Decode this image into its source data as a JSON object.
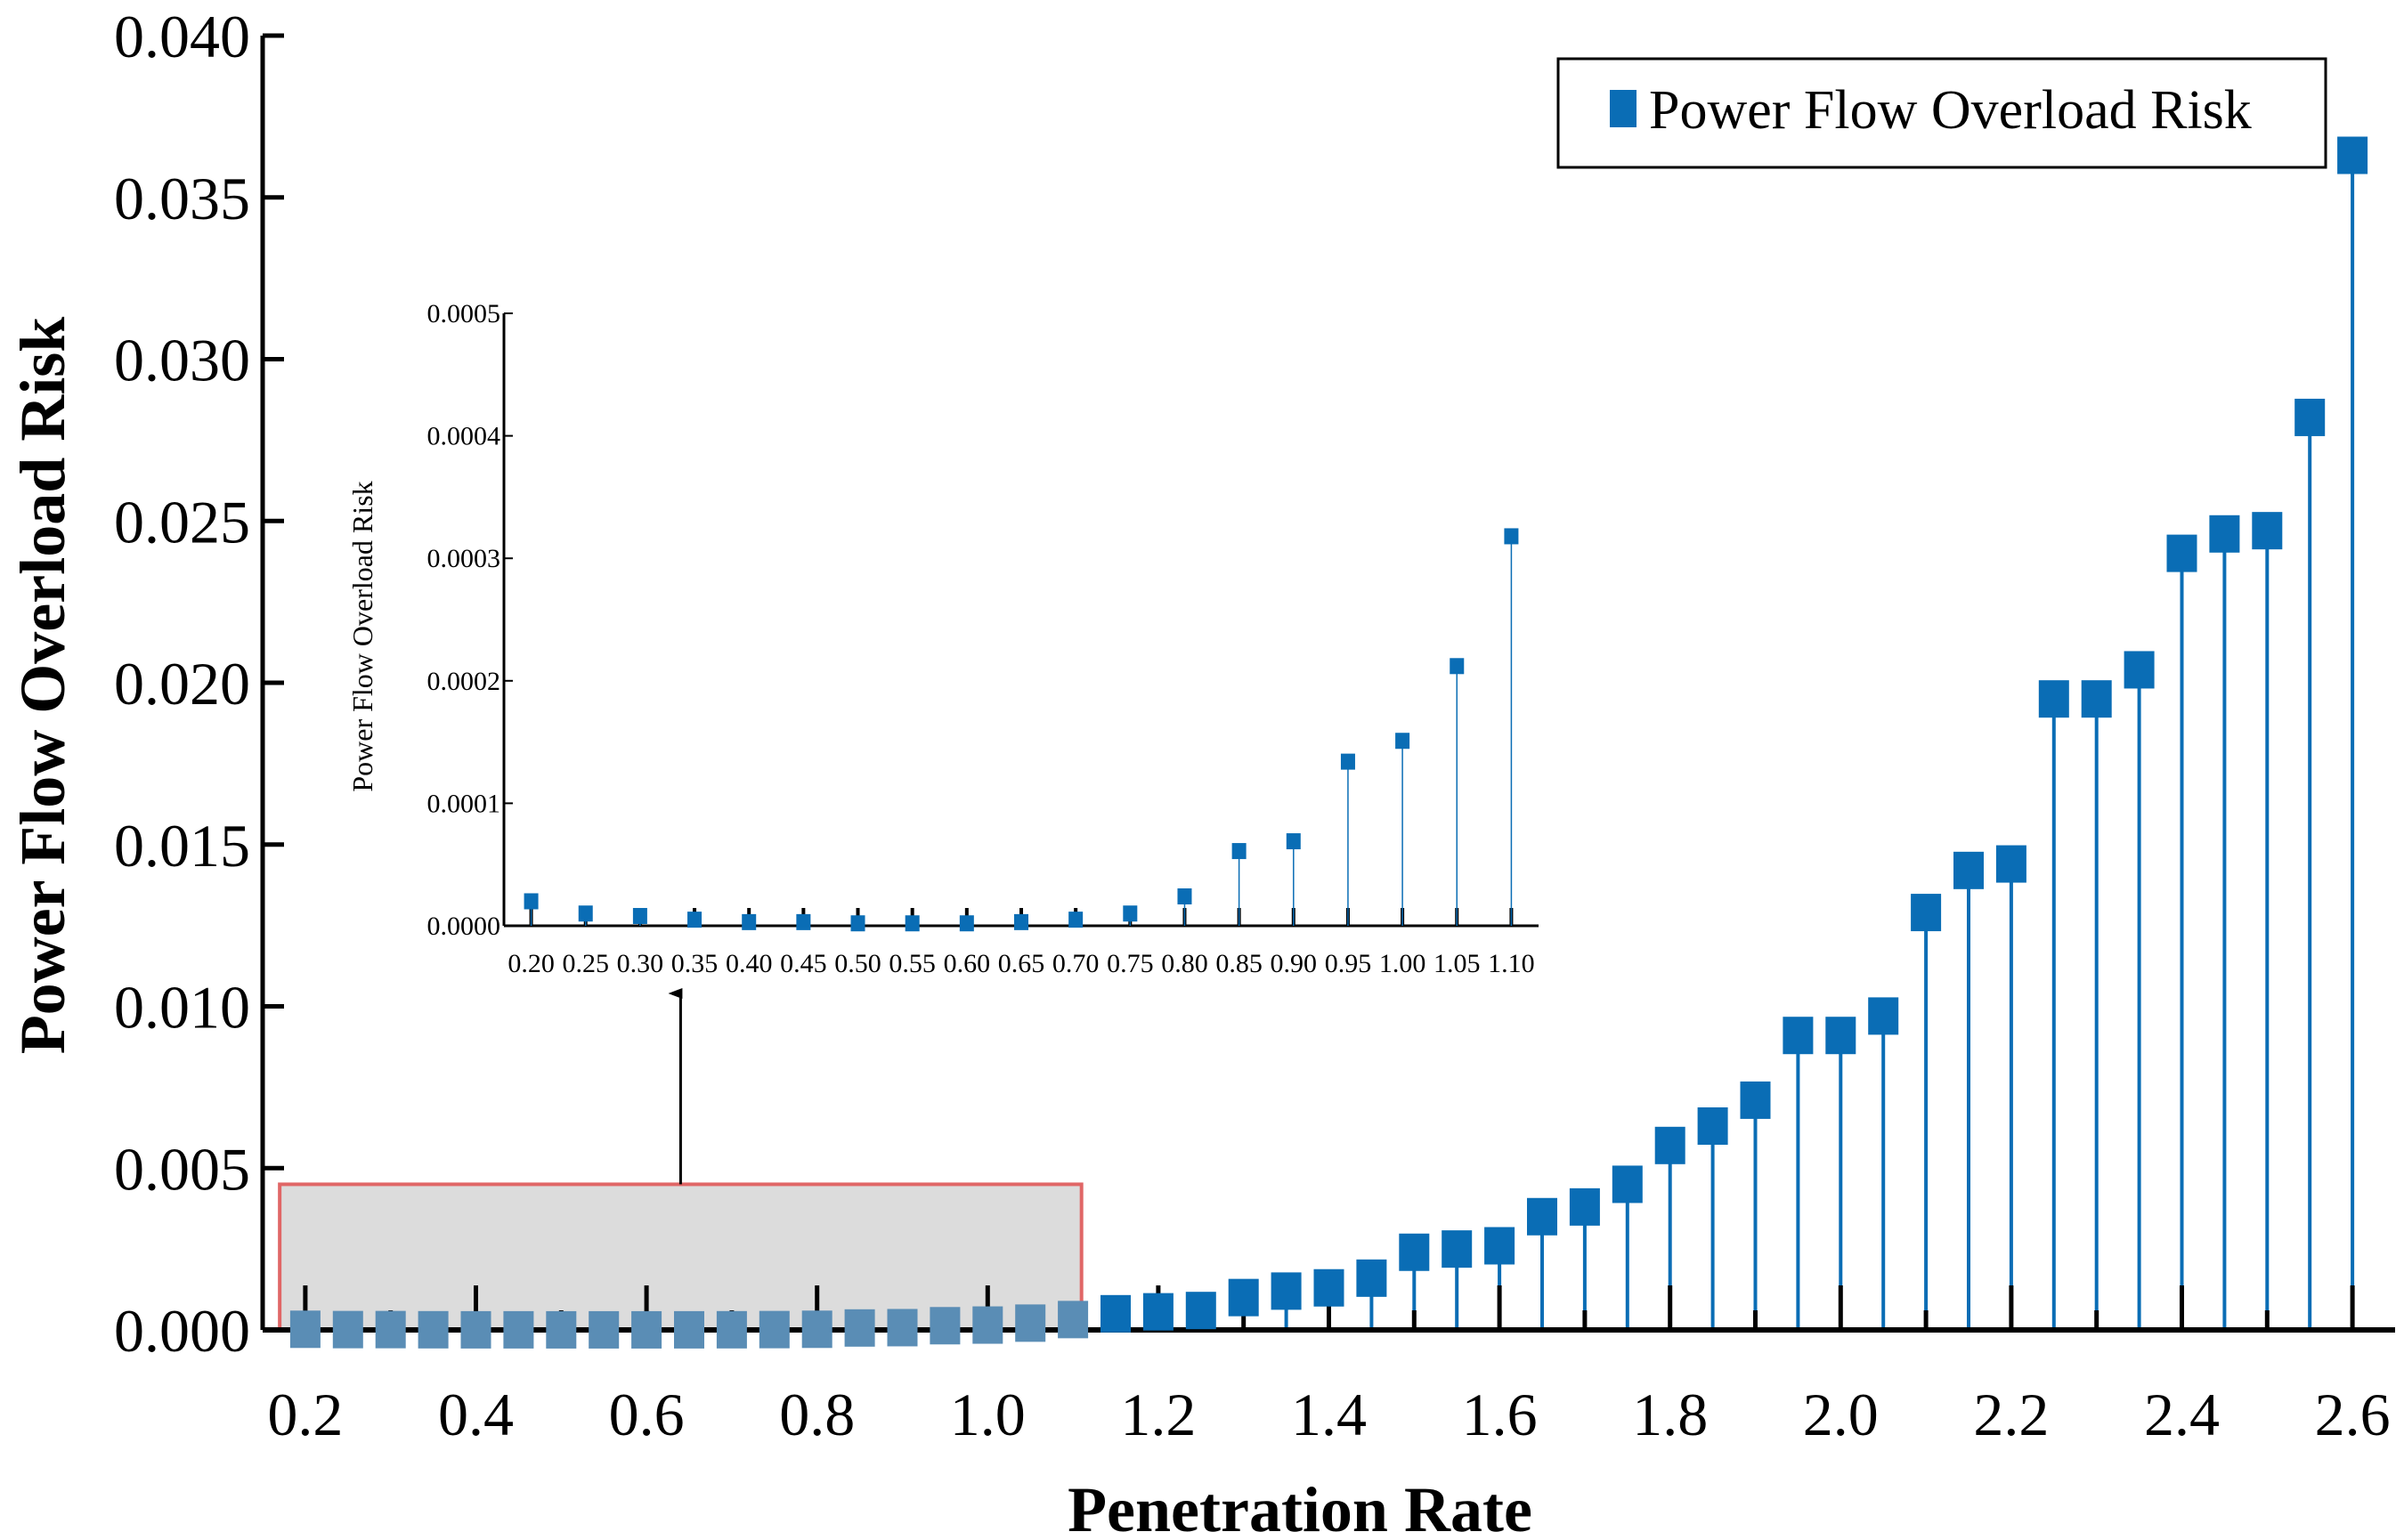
{
  "chart_data": [
    {
      "type": "scatter",
      "style": "stem",
      "xlabel": "Penetration Rate",
      "ylabel": "Power Flow Overload Risk",
      "xlim": [
        0.15,
        2.65
      ],
      "ylim": [
        0,
        0.04
      ],
      "xticks": [
        "0.2",
        "0.4",
        "0.6",
        "0.8",
        "1.0",
        "1.2",
        "1.4",
        "1.6",
        "1.8",
        "2.0",
        "2.2",
        "2.4",
        "2.6"
      ],
      "yticks": [
        "0.000",
        "0.005",
        "0.010",
        "0.015",
        "0.020",
        "0.025",
        "0.030",
        "0.035",
        "0.040"
      ],
      "legend": {
        "label": "Power Flow Overload Risk",
        "position": "top-right"
      },
      "highlight_region": {
        "x": [
          0.17,
          1.11
        ],
        "y": [
          0,
          0.0045
        ],
        "note": "zoomed in inset"
      },
      "series": [
        {
          "name": "Power Flow Overload Risk",
          "color": "#0a6db5",
          "x": [
            0.2,
            0.25,
            0.3,
            0.35,
            0.4,
            0.45,
            0.5,
            0.55,
            0.6,
            0.65,
            0.7,
            0.75,
            0.8,
            0.85,
            0.9,
            0.95,
            1.0,
            1.05,
            1.1,
            1.15,
            1.2,
            1.25,
            1.3,
            1.35,
            1.4,
            1.45,
            1.5,
            1.55,
            1.6,
            1.65,
            1.7,
            1.75,
            1.8,
            1.85,
            1.9,
            1.95,
            2.0,
            2.05,
            2.1,
            2.15,
            2.2,
            2.25,
            2.3,
            2.35,
            2.4,
            2.45,
            2.5,
            2.55,
            2.6
          ],
          "values": [
            2e-05,
            1e-05,
            1e-05,
            5e-06,
            3e-06,
            3e-06,
            2e-06,
            2e-06,
            2e-06,
            3e-06,
            5e-06,
            1e-05,
            2e-05,
            6e-05,
            7e-05,
            0.00013,
            0.00015,
            0.00021,
            0.00032,
            0.0005,
            0.00056,
            0.0006,
            0.001,
            0.0012,
            0.0013,
            0.0016,
            0.0024,
            0.0025,
            0.0026,
            0.0035,
            0.0038,
            0.0045,
            0.0057,
            0.0063,
            0.0071,
            0.0091,
            0.0091,
            0.0097,
            0.0129,
            0.0142,
            0.0144,
            0.0195,
            0.0195,
            0.0204,
            0.024,
            0.0246,
            0.0247,
            0.0282,
            0.0363
          ]
        }
      ]
    },
    {
      "type": "scatter",
      "style": "stem",
      "xlabel": "",
      "ylabel": "Power Flow Overload Risk",
      "xlim": [
        0.175,
        1.125
      ],
      "ylim": [
        0,
        0.0005
      ],
      "xticks": [
        "0.20",
        "0.25",
        "0.30",
        "0.35",
        "0.40",
        "0.45",
        "0.50",
        "0.55",
        "0.60",
        "0.65",
        "0.70",
        "0.75",
        "0.80",
        "0.85",
        "0.90",
        "0.95",
        "1.00",
        "1.05",
        "1.10"
      ],
      "yticks": [
        "0.0000",
        "0.0001",
        "0.0002",
        "0.0003",
        "0.0004",
        "0.0005"
      ],
      "series": [
        {
          "name": "Power Flow Overload Risk",
          "color": "#0a6db5",
          "x": [
            0.2,
            0.25,
            0.3,
            0.35,
            0.4,
            0.45,
            0.5,
            0.55,
            0.6,
            0.65,
            0.7,
            0.75,
            0.8,
            0.85,
            0.9,
            0.95,
            1.0,
            1.05,
            1.1
          ],
          "values": [
            2e-05,
            1e-05,
            8e-06,
            5e-06,
            3e-06,
            3e-06,
            2e-06,
            2e-06,
            2e-06,
            3e-06,
            5e-06,
            1e-05,
            2.4e-05,
            6.1e-05,
            6.9e-05,
            0.000134,
            0.000151,
            0.000212,
            0.000318
          ]
        }
      ]
    }
  ]
}
